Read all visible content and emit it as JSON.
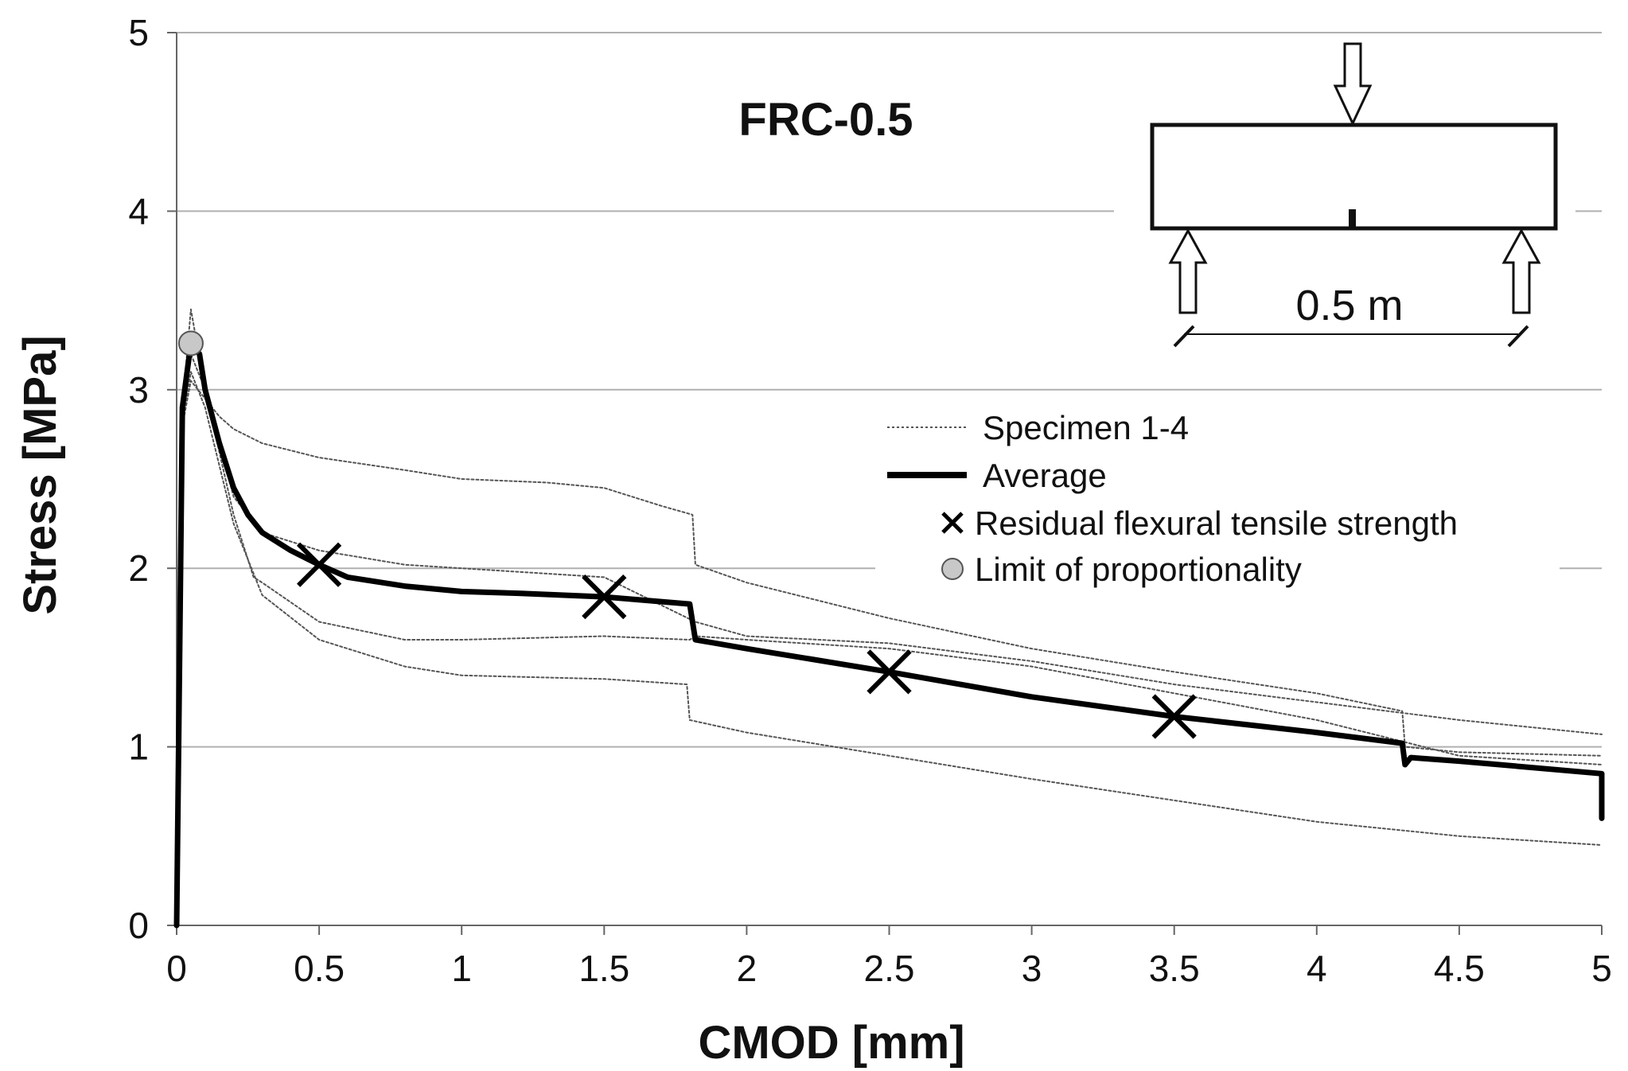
{
  "chart_data": {
    "type": "line",
    "title": "FRC-0.5",
    "xlabel": "CMOD [mm]",
    "ylabel": "Stress [MPa]",
    "xlim": [
      0,
      5
    ],
    "ylim": [
      0,
      5
    ],
    "xticks": [
      0,
      0.5,
      1,
      1.5,
      2,
      2.5,
      3,
      3.5,
      4,
      4.5,
      5
    ],
    "xtick_labels": [
      "0",
      "0.5",
      "1",
      "1.5",
      "2",
      "2.5",
      "3",
      "3.5",
      "4",
      "4.5",
      "5"
    ],
    "yticks": [
      0,
      1,
      2,
      3,
      4,
      5
    ],
    "ytick_labels": [
      "0",
      "1",
      "2",
      "3",
      "4",
      "5"
    ],
    "grid": "horizontal",
    "legend": {
      "position": "center-right",
      "entries": [
        {
          "label": "Specimen 1-4",
          "style": "dotted-thin"
        },
        {
          "label": "Average",
          "style": "solid-thick"
        },
        {
          "label": "Residual flexural tensile strength",
          "style": "x-marker"
        },
        {
          "label": "Limit of proportionality",
          "style": "grey-circle"
        }
      ]
    },
    "series": [
      {
        "name": "Specimen 1",
        "style": "dotted-thin",
        "x": [
          0,
          0.02,
          0.05,
          0.1,
          0.15,
          0.2,
          0.3,
          0.5,
          0.8,
          1.0,
          1.3,
          1.5,
          1.7,
          1.81,
          1.82,
          2.0,
          2.5,
          3.0,
          3.5,
          4.0,
          4.3,
          4.31,
          4.5,
          5.0
        ],
        "y": [
          0,
          2.8,
          3.05,
          2.95,
          2.85,
          2.78,
          2.7,
          2.62,
          2.55,
          2.5,
          2.48,
          2.45,
          2.35,
          2.3,
          2.02,
          1.92,
          1.72,
          1.55,
          1.42,
          1.3,
          1.2,
          1.0,
          0.97,
          0.95
        ]
      },
      {
        "name": "Specimen 2",
        "style": "dotted-thin",
        "x": [
          0,
          0.02,
          0.05,
          0.1,
          0.2,
          0.3,
          0.5,
          0.8,
          1.0,
          1.5,
          1.82,
          2.0,
          2.5,
          3.0,
          3.5,
          4.0,
          4.5,
          5.0
        ],
        "y": [
          0,
          2.9,
          3.45,
          3.0,
          2.4,
          2.2,
          2.1,
          2.02,
          2.0,
          1.95,
          1.7,
          1.62,
          1.58,
          1.48,
          1.35,
          1.25,
          1.15,
          1.07
        ]
      },
      {
        "name": "Specimen 3",
        "style": "dotted-thin",
        "x": [
          0,
          0.02,
          0.05,
          0.1,
          0.2,
          0.27,
          0.3,
          0.5,
          0.8,
          1.0,
          1.5,
          1.8,
          1.82,
          2.0,
          2.5,
          3.0,
          3.5,
          4.0,
          4.5,
          5.0
        ],
        "y": [
          0,
          2.9,
          3.2,
          3.0,
          2.3,
          1.95,
          1.92,
          1.7,
          1.6,
          1.6,
          1.62,
          1.6,
          1.62,
          1.6,
          1.55,
          1.45,
          1.3,
          1.15,
          0.95,
          0.9
        ]
      },
      {
        "name": "Specimen 4",
        "style": "dotted-thin",
        "x": [
          0,
          0.02,
          0.05,
          0.1,
          0.2,
          0.3,
          0.5,
          0.8,
          1.0,
          1.5,
          1.79,
          1.8,
          2.0,
          2.5,
          3.0,
          3.5,
          4.0,
          4.5,
          5.0
        ],
        "y": [
          0,
          2.8,
          3.1,
          2.9,
          2.25,
          1.85,
          1.6,
          1.45,
          1.4,
          1.38,
          1.35,
          1.15,
          1.08,
          0.95,
          0.82,
          0.7,
          0.58,
          0.5,
          0.45
        ]
      },
      {
        "name": "Average",
        "style": "solid-thick",
        "x": [
          0,
          0.02,
          0.05,
          0.08,
          0.1,
          0.15,
          0.2,
          0.25,
          0.3,
          0.4,
          0.5,
          0.6,
          0.8,
          1.0,
          1.2,
          1.5,
          1.8,
          1.82,
          2.0,
          2.5,
          3.0,
          3.5,
          4.0,
          4.3,
          4.31,
          4.33,
          4.5,
          5.0,
          5.0
        ],
        "y": [
          0,
          2.9,
          3.26,
          3.2,
          3.0,
          2.7,
          2.45,
          2.3,
          2.2,
          2.1,
          2.02,
          1.95,
          1.9,
          1.87,
          1.86,
          1.84,
          1.8,
          1.6,
          1.55,
          1.42,
          1.28,
          1.17,
          1.08,
          1.02,
          0.9,
          0.94,
          0.92,
          0.85,
          0.6
        ]
      }
    ],
    "residual_strength_points": {
      "x": [
        0.5,
        1.5,
        2.5,
        3.5
      ],
      "y": [
        2.02,
        1.84,
        1.42,
        1.17
      ]
    },
    "limit_of_proportionality": {
      "x": 0.05,
      "y": 3.26
    }
  },
  "inset": {
    "description_label": "0.5 m"
  },
  "colors": {
    "text": "#111111",
    "grid": "#b0b0b0",
    "average": "#000000",
    "specimen": "#555555",
    "lop_fill": "#c8c8c8"
  }
}
